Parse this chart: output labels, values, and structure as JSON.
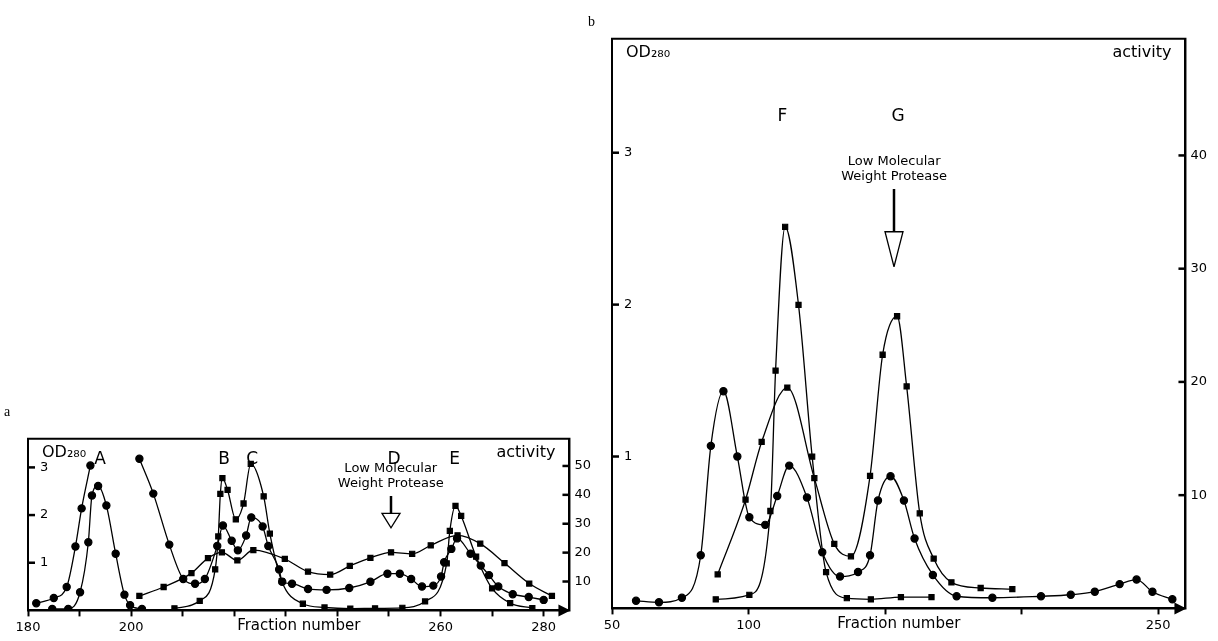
{
  "chart_data": [
    {
      "type": "line",
      "title": "a",
      "xlabel": "Fraction number",
      "ylabel": "OD₂₈₀",
      "y2label": "activity",
      "xlim": [
        180,
        285
      ],
      "xticks": [
        180,
        {
          "value": 190,
          "label": null
        },
        200,
        {
          "value": 210,
          "label": null
        },
        {
          "value": 220,
          "label": null
        },
        {
          "value": 230,
          "label": null
        },
        {
          "value": 240,
          "label": null
        },
        {
          "value": 250,
          "label": null
        },
        260,
        {
          "value": 270,
          "label": null
        },
        280
      ],
      "ylim": [
        0,
        3.6
      ],
      "yticks": [
        1,
        2,
        3
      ],
      "y2lim": [
        0,
        59.4
      ],
      "y2ticks": [
        10,
        20,
        30,
        40,
        50
      ],
      "grid": false,
      "legend": false,
      "annotations": [
        "A",
        "B",
        "C",
        "D",
        "E",
        "Low Molecular\nWeight Protease"
      ],
      "series": [
        {
          "color": "#000000",
          "marker": "circle",
          "x": [
            181.6,
            185,
            187.5,
            189.2,
            190.4,
            192.1,
            197,
            201.6,
            204.3,
            207.4,
            210.1,
            212.4,
            214.3,
            216.7,
            217.8,
            219.5,
            220.7,
            222.3,
            223.3,
            225.5,
            226.6,
            228.7,
            229.3,
            231.2,
            234.3,
            237.9,
            242.3,
            246.4,
            249.7,
            252.1,
            254.3,
            256.4,
            258.6,
            260.1,
            260.7,
            262.1,
            263.2,
            265.8,
            267.8,
            269.4,
            271.2,
            274,
            277.1,
            280
          ],
          "values": [
            0.15,
            0.26,
            0.49,
            1.34,
            2.14,
            3.04,
            null,
            3.18,
            2.45,
            1.38,
            0.66,
            0.56,
            0.66,
            1.35,
            1.78,
            1.46,
            1.26,
            1.57,
            1.95,
            1.76,
            1.35,
            0.86,
            0.6,
            0.56,
            0.45,
            0.43,
            0.47,
            0.6,
            0.77,
            0.77,
            0.66,
            0.5,
            0.52,
            0.71,
            1.01,
            1.29,
            1.51,
            1.19,
            0.94,
            0.74,
            0.5,
            0.34,
            0.28,
            0.22
          ]
        },
        {
          "color": "#000000",
          "marker": "circle",
          "x": [
            184.7,
            187.8,
            190.1,
            191.7,
            192.4,
            193.6,
            195.2,
            197,
            198.7,
            199.8,
            202.1
          ],
          "values": [
            0.03,
            0.03,
            0.38,
            1.43,
            2.41,
            2.61,
            2.2,
            1.19,
            0.33,
            0.11,
            0.03
          ]
        },
        {
          "color": "#000000",
          "marker": "square",
          "axis": "y2",
          "x": [
            208.4,
            213.3,
            216.3,
            216.9,
            217.3,
            217.7,
            218.7,
            220.3,
            221.8,
            223.2,
            225.7,
            226.9,
            229.2,
            233.3,
            237.5,
            242.5,
            247.3,
            252.6,
            257,
            261.2,
            261.8,
            262.9,
            264,
            266.9,
            270,
            273.5,
            277.8
          ],
          "values": [
            0.7,
            3.3,
            14.2,
            25.6,
            40.3,
            45.8,
            41.7,
            31.5,
            37,
            50.7,
            39.5,
            26.6,
            10.1,
            2.3,
            1,
            0.6,
            0.7,
            0.9,
            3.1,
            16.3,
            27.5,
            36.2,
            32.7,
            18.6,
            7.6,
            2.5,
            0.8
          ]
        },
        {
          "color": "#000000",
          "marker": "square",
          "axis": "y2",
          "x": [
            201.6,
            206.3,
            211.7,
            214.9,
            217.6,
            220.6,
            223.7,
            229.8,
            234.3,
            238.6,
            242.4,
            246.4,
            250.4,
            254.5,
            258.1,
            263.3,
            267.7,
            272.4,
            277.2,
            281.6
          ],
          "values": [
            5,
            8.1,
            12.9,
            18.1,
            20.1,
            17.3,
            20.9,
            17.8,
            13.4,
            12.4,
            15.4,
            18.2,
            20.1,
            19.6,
            22.5,
            26,
            23.1,
            16.4,
            9.3,
            5
          ]
        }
      ]
    },
    {
      "type": "line",
      "title": "b",
      "xlabel": "Fraction number",
      "ylabel": "OD₂₈₀",
      "y2label": "activity",
      "xlim": [
        50,
        260
      ],
      "xticks": [
        50,
        100,
        {
          "value": 150,
          "label": null
        },
        {
          "value": 200,
          "label": null
        },
        250
      ],
      "ylim": [
        0,
        3.75
      ],
      "yticks": [
        1,
        2,
        3
      ],
      "y2lim": [
        0,
        50.3
      ],
      "y2ticks": [
        10,
        20,
        30,
        40
      ],
      "grid": false,
      "legend": false,
      "annotations": [
        "F",
        "G",
        "Low Molecular\nWeight Protease"
      ],
      "series": [
        {
          "color": "#000000",
          "marker": "circle",
          "x": [
            58.8,
            67.2,
            75.6,
            82.5,
            86.2,
            90.8,
            95.9,
            100.3,
            106.1,
            110.5,
            114.9,
            121.4,
            127,
            133.5,
            140.1,
            144.5,
            147.4,
            152,
            156.9,
            160.8,
            167.5,
            176.2,
            189.3,
            207.1,
            218,
            226.8,
            235.9,
            242.1,
            247.9,
            255.2
          ],
          "values": [
            0.05,
            0.04,
            0.07,
            0.35,
            1.07,
            1.43,
            1,
            0.6,
            0.55,
            0.74,
            0.94,
            0.73,
            0.37,
            0.21,
            0.24,
            0.35,
            0.71,
            0.87,
            0.71,
            0.46,
            0.22,
            0.08,
            0.07,
            0.08,
            0.09,
            0.11,
            0.16,
            0.19,
            0.11,
            0.06
          ]
        },
        {
          "color": "#000000",
          "marker": "square",
          "axis": "y2",
          "x": [
            88,
            100.3,
            108,
            109.9,
            113.4,
            118.3,
            123.3,
            128.4,
            136,
            144.8,
            155.8,
            167
          ],
          "values": [
            0.8,
            1.2,
            8.6,
            21,
            33.7,
            26.8,
            13.4,
            3.2,
            0.9,
            0.8,
            1,
            1
          ]
        },
        {
          "color": "#000000",
          "marker": "square",
          "axis": "y2",
          "x": [
            88.7,
            98.9,
            104.8,
            114.2,
            124.1,
            131.4,
            137.5,
            144.5,
            149.1,
            154.4,
            157.9,
            162.7,
            167.8,
            174.3,
            185,
            196.6
          ],
          "values": [
            3,
            9.6,
            14.7,
            19.5,
            11.5,
            5.7,
            4.6,
            11.7,
            22.4,
            25.8,
            19.6,
            8.4,
            4.4,
            2.3,
            1.8,
            1.7
          ]
        }
      ]
    }
  ]
}
